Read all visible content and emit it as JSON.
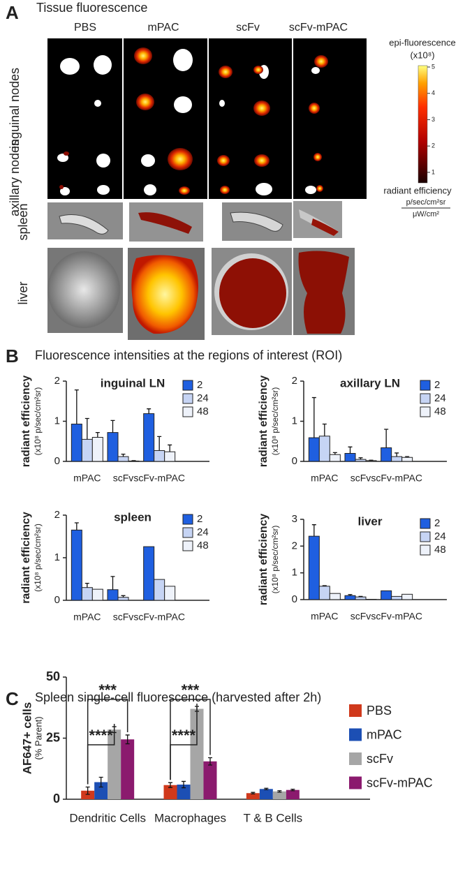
{
  "panel_a": {
    "label": "A",
    "title": "Tissue fluorescence",
    "columns": [
      "PBS",
      "mPAC",
      "scFv",
      "scFv-mPAC"
    ],
    "rows": [
      "inguinal nodes",
      "axillary nodes",
      "spleen",
      "liver"
    ],
    "colorbar": {
      "title": "epi-fluorescence",
      "scale": "(x10⁸)",
      "lim": [
        0.6,
        5
      ],
      "ticks": [
        1,
        2,
        3,
        4,
        5
      ],
      "unit_title": "radiant efficiency",
      "unit_numerator": "p/sec/cm²sr",
      "unit_denominator": "μW/cm²"
    }
  },
  "panel_b": {
    "label": "B",
    "title": "Fluorescence intensities at the regions of interest (ROI)"
  },
  "panel_c": {
    "label": "C",
    "title": "Spleen single-cell fluorescence (harvested after 2h)"
  },
  "chart_data": [
    {
      "type": "bar",
      "title": "inguinal LN",
      "y_label": "radiant efficiency",
      "y_sublabel": "(x10⁸ p/sec/cm²sr)",
      "categories": [
        "mPAC",
        "scFv",
        "scFv-mPAC"
      ],
      "ylim": [
        0,
        2
      ],
      "yticks": [
        0,
        1,
        2
      ],
      "series": [
        {
          "name": "2",
          "color": "#1f5fe0",
          "values": [
            0.93,
            0.72,
            1.19
          ],
          "errors": [
            0.85,
            0.3,
            0.12
          ]
        },
        {
          "name": "24",
          "color": "#c6d4f4",
          "values": [
            0.55,
            0.12,
            0.27
          ],
          "errors": [
            0.52,
            0.06,
            0.35
          ]
        },
        {
          "name": "48",
          "color": "#eef2fa",
          "values": [
            0.6,
            0.01,
            0.24
          ],
          "errors": [
            0.12,
            0.01,
            0.17
          ]
        }
      ]
    },
    {
      "type": "bar",
      "title": "axillary LN",
      "y_label": "radiant efficiency",
      "y_sublabel": "(x10⁸ p/sec/cm²sr)",
      "categories": [
        "mPAC",
        "scFv",
        "scFv-mPAC"
      ],
      "ylim": [
        0,
        2
      ],
      "yticks": [
        0,
        1,
        2
      ],
      "series": [
        {
          "name": "2",
          "color": "#1f5fe0",
          "values": [
            0.59,
            0.2,
            0.34
          ],
          "errors": [
            1.0,
            0.16,
            0.46
          ]
        },
        {
          "name": "24",
          "color": "#c6d4f4",
          "values": [
            0.63,
            0.05,
            0.12
          ],
          "errors": [
            0.3,
            0.04,
            0.09
          ]
        },
        {
          "name": "48",
          "color": "#eef2fa",
          "values": [
            0.17,
            0.02,
            0.1
          ],
          "errors": [
            0.05,
            0.01,
            0.02
          ]
        }
      ]
    },
    {
      "type": "bar",
      "title": "spleen",
      "y_label": "radiant efficiency",
      "y_sublabel": "(x10⁸ p/sec/cm²sr)",
      "categories": [
        "mPAC",
        "scFv",
        "scFv-mPAC"
      ],
      "ylim": [
        0,
        2
      ],
      "yticks": [
        0,
        1,
        2
      ],
      "series": [
        {
          "name": "2",
          "color": "#1f5fe0",
          "values": [
            1.65,
            0.25,
            1.26
          ],
          "errors": [
            0.17,
            0.31,
            null
          ]
        },
        {
          "name": "24",
          "color": "#c6d4f4",
          "values": [
            0.3,
            0.07,
            0.49
          ],
          "errors": [
            0.1,
            0.04,
            null
          ]
        },
        {
          "name": "48",
          "color": "#eef2fa",
          "values": [
            0.26,
            0.0,
            0.33
          ],
          "errors": [
            null,
            null,
            null
          ]
        }
      ]
    },
    {
      "type": "bar",
      "title": "liver",
      "y_label": "radiant efficiency",
      "y_sublabel": "(x10⁸ p/sec/cm²sr)",
      "categories": [
        "mPAC",
        "scFv",
        "scFv-mPAC"
      ],
      "ylim": [
        0,
        3
      ],
      "yticks": [
        0,
        1,
        2,
        3
      ],
      "series": [
        {
          "name": "2",
          "color": "#1f5fe0",
          "values": [
            2.37,
            0.15,
            0.33
          ],
          "errors": [
            0.43,
            0.04,
            null
          ]
        },
        {
          "name": "24",
          "color": "#c6d4f4",
          "values": [
            0.5,
            0.1,
            0.12
          ],
          "errors": [
            0.02,
            0.02,
            null
          ]
        },
        {
          "name": "48",
          "color": "#eef2fa",
          "values": [
            0.23,
            0.01,
            0.2
          ],
          "errors": [
            null,
            null,
            null
          ]
        }
      ]
    },
    {
      "type": "bar",
      "y_label": "AF647+ cells",
      "y_sublabel": "(% Parent)",
      "categories": [
        "Dendritic Cells",
        "Macrophages",
        "T & B Cells"
      ],
      "ylim": [
        0,
        50
      ],
      "yticks": [
        0,
        25,
        50
      ],
      "series": [
        {
          "name": "PBS",
          "color": "#d0391c",
          "values": [
            3.5,
            5.8,
            2.5
          ],
          "errors": [
            1.5,
            1.0,
            0.3
          ]
        },
        {
          "name": "mPAC",
          "color": "#1c4fb4",
          "values": [
            7,
            6,
            4.2
          ],
          "errors": [
            2,
            1.3,
            0.3
          ]
        },
        {
          "name": "scFv",
          "color": "#a6a6a6",
          "values": [
            28.5,
            37,
            3.2
          ],
          "errors": [
            1.2,
            1.0,
            0.3
          ]
        },
        {
          "name": "scFv-mPAC",
          "color": "#8b1a6e",
          "values": [
            24.5,
            15.5,
            3.8
          ],
          "errors": [
            1.8,
            1.5,
            0.3
          ]
        }
      ],
      "annotations": [
        {
          "text": "***"
        },
        {
          "text": "****"
        },
        {
          "text": "***"
        },
        {
          "text": "****"
        }
      ]
    }
  ]
}
